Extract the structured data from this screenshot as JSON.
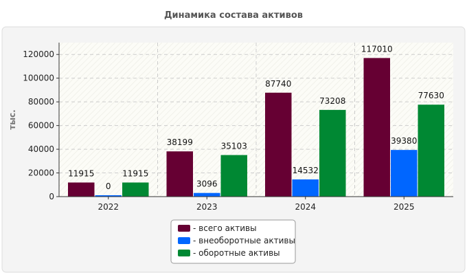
{
  "chart_data": {
    "type": "bar",
    "title": "Динамика состава активов",
    "ylabel": "тыс.",
    "xlabel": "",
    "categories": [
      "2022",
      "2023",
      "2024",
      "2025"
    ],
    "ylim": [
      0,
      130000
    ],
    "yticks": [
      0,
      20000,
      40000,
      60000,
      80000,
      100000,
      120000
    ],
    "grid": true,
    "legend_position": "bottom-center",
    "series": [
      {
        "name": "- всего активы",
        "color": "#660033",
        "values": [
          11915,
          38199,
          87740,
          117010
        ]
      },
      {
        "name": "- внеоборотные активы",
        "color": "#0066ff",
        "values": [
          0,
          3096,
          14532,
          39380
        ]
      },
      {
        "name": "- оборотные активы",
        "color": "#008833",
        "values": [
          11915,
          35103,
          73208,
          77630
        ]
      }
    ]
  }
}
